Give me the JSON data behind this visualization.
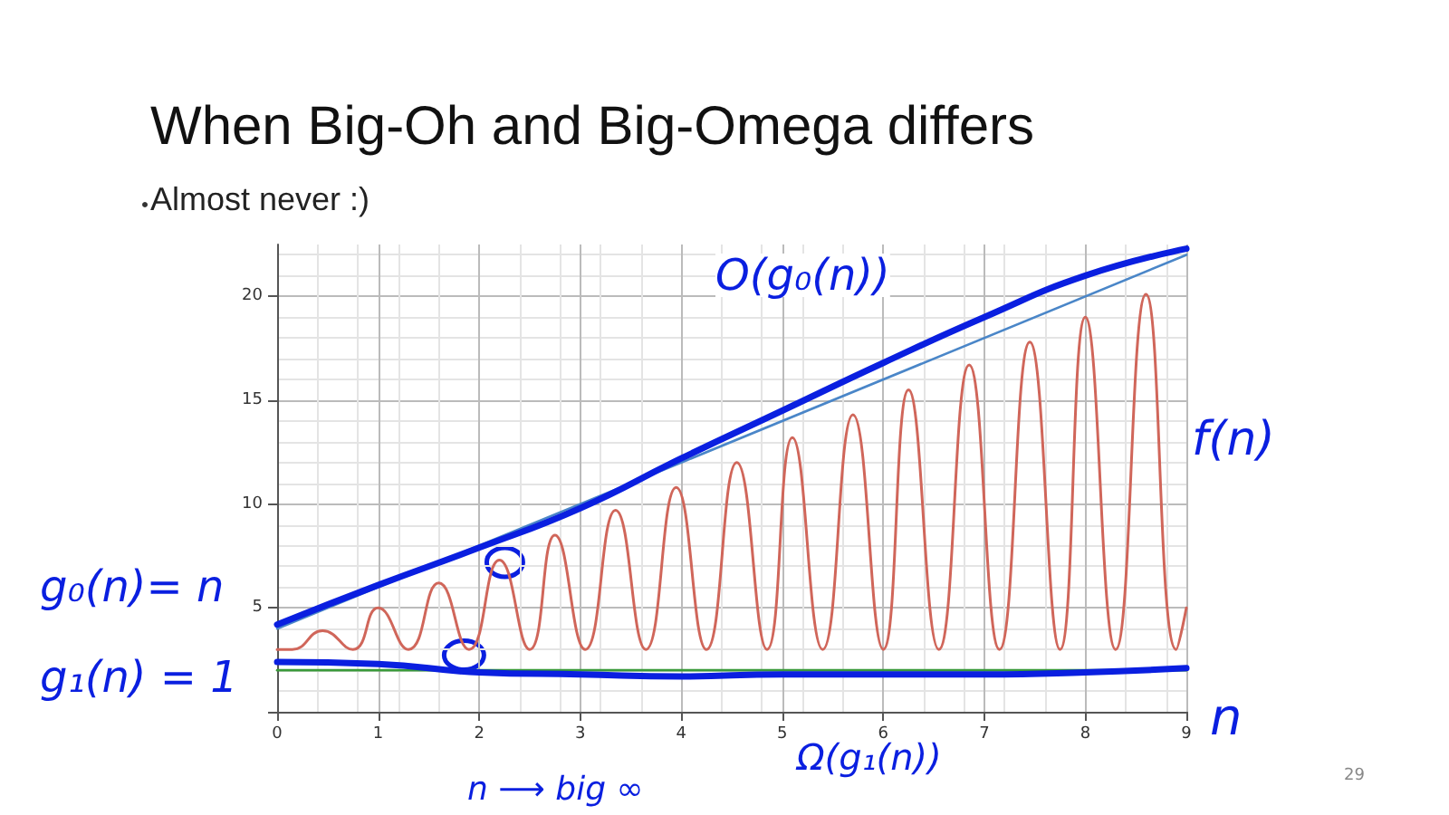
{
  "chart_data": {
    "type": "line",
    "title": "When Big-Oh and Big-Omega differs",
    "subtitle": "Almost never :)",
    "xlim": [
      0,
      9
    ],
    "xticks": [
      0,
      1,
      2,
      3,
      4,
      5,
      6,
      7,
      8,
      9
    ],
    "ylim": [
      0,
      22.5
    ],
    "yticks": [
      {
        "value": 0,
        "label": null
      },
      5,
      10,
      15,
      20
    ],
    "grid": true,
    "marker": "none",
    "line_style": "solid",
    "series": [
      {
        "color": "#d0665a",
        "x": [
          0,
          0.15,
          0.45,
          0.75,
          1.0,
          1.3,
          1.6,
          1.9,
          2.2,
          2.5,
          2.75,
          3.05,
          3.35,
          3.65,
          3.95,
          4.25,
          4.55,
          4.85,
          5.1,
          5.4,
          5.7,
          6.0,
          6.25,
          6.55,
          6.85,
          7.15,
          7.45,
          7.75,
          8.0,
          8.3,
          8.6,
          8.9,
          9.0
        ],
        "values": [
          3,
          3,
          3.9,
          3,
          5,
          3,
          6.2,
          3,
          7.3,
          3,
          8.5,
          3,
          9.7,
          3,
          10.8,
          3,
          12,
          3,
          13.2,
          3,
          14.3,
          3,
          15.5,
          3,
          16.7,
          3,
          17.8,
          3,
          19,
          3,
          20.1,
          3,
          5
        ]
      },
      {
        "color": "#4a86c8",
        "x": [
          0,
          9
        ],
        "values": [
          4,
          22
        ]
      },
      {
        "color": "#3a9a3a",
        "x": [
          0,
          9
        ],
        "values": [
          2,
          2
        ]
      },
      {
        "color": "#0a1fe0",
        "x": [
          0,
          1,
          2,
          3,
          4,
          5,
          6,
          7,
          8,
          9
        ],
        "values": [
          4.2,
          6.1,
          7.9,
          9.8,
          12.2,
          14.5,
          16.8,
          19,
          21,
          22.3
        ]
      },
      {
        "color": "#0a1fe0",
        "x": [
          0,
          1,
          2,
          3,
          4,
          5,
          6,
          7,
          8,
          9
        ],
        "values": [
          2.4,
          2.3,
          1.9,
          1.8,
          1.7,
          1.8,
          1.8,
          1.8,
          1.9,
          2.1
        ]
      }
    ],
    "annotations": [
      "O(g₀(n))",
      "f(n)",
      "g₀(n)= n",
      "g₁(n) = 1",
      "Ω(g₁(n))",
      "n",
      "n ⟶ big ∞",
      "29"
    ]
  }
}
